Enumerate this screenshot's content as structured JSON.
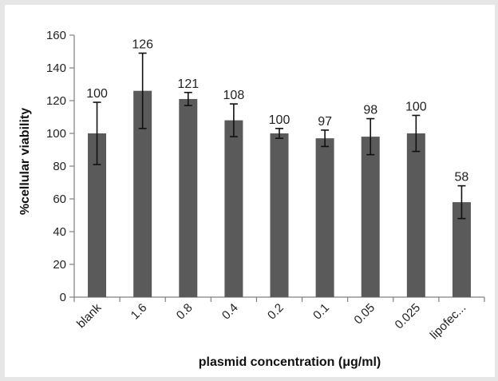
{
  "chart_data": {
    "type": "bar",
    "title": "",
    "xlabel": "plasmid concentration (μg/ml)",
    "ylabel": "%cellular viability",
    "categories": [
      "blank",
      "1.6",
      "0.8",
      "0.4",
      "0.2",
      "0.1",
      "0.05",
      "0.025",
      "lipofec..."
    ],
    "values": [
      100,
      126,
      121,
      108,
      100,
      97,
      98,
      100,
      58
    ],
    "data_labels": [
      "100",
      "126",
      "121",
      "108",
      "100",
      "97",
      "98",
      "100",
      "58"
    ],
    "error_bars": [
      19,
      23,
      4,
      10,
      3,
      5,
      11,
      11,
      10
    ],
    "ylim": [
      0,
      160
    ],
    "yticks": [
      "0",
      "20",
      "40",
      "60",
      "80",
      "100",
      "120",
      "140",
      "160"
    ],
    "grid": false,
    "legend": "none",
    "bar_color": "#5a5a5a"
  }
}
